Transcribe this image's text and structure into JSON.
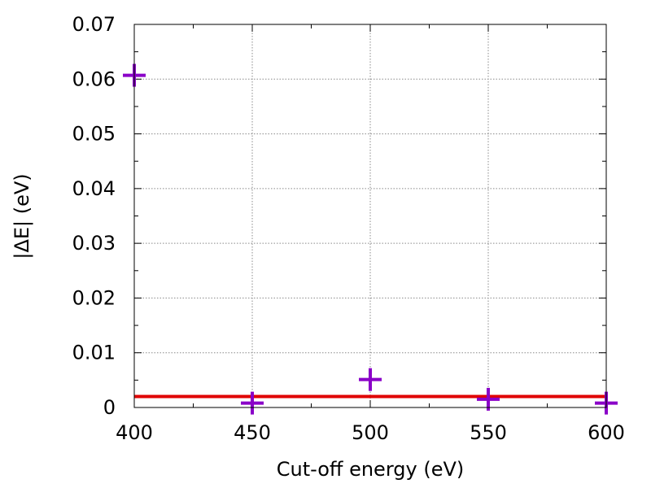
{
  "chart_data": {
    "type": "scatter",
    "title": "",
    "xlabel": "Cut-off energy (eV)",
    "ylabel": "|ΔE| (eV)",
    "xlim": [
      400,
      600
    ],
    "ylim": [
      0,
      0.07
    ],
    "grid": true,
    "x_ticks": [
      400,
      450,
      500,
      550,
      600
    ],
    "y_ticks": [
      0,
      0.01,
      0.02,
      0.03,
      0.04,
      0.05,
      0.06,
      0.07
    ],
    "series": [
      {
        "marker": "plus",
        "color": "#8a00c8",
        "points": [
          {
            "x": 400,
            "y": 0.0607
          },
          {
            "x": 450,
            "y": 0.0008
          },
          {
            "x": 500,
            "y": 0.0051
          },
          {
            "x": 550,
            "y": 0.0015
          },
          {
            "x": 600,
            "y": 0.0008
          }
        ]
      }
    ],
    "reference_line": {
      "y": 0.002,
      "color": "#e00000"
    }
  }
}
